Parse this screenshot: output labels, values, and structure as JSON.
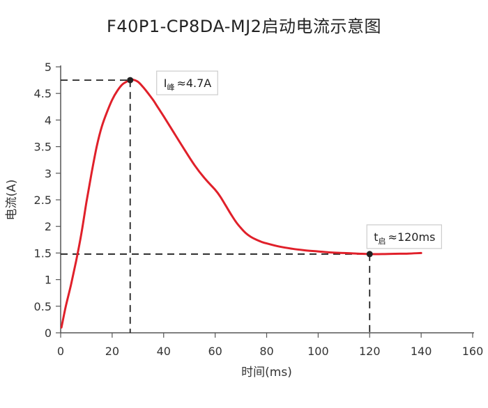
{
  "chart_data": {
    "type": "line",
    "title": "F40P1-CP8DA-MJ2启动电流示意图",
    "xlabel": "时间(ms)",
    "ylabel": "电流(A)",
    "xlim": [
      0,
      160
    ],
    "ylim": [
      0,
      5
    ],
    "xticks": [
      0,
      20,
      40,
      60,
      80,
      100,
      120,
      140,
      160
    ],
    "yticks": [
      0,
      0.5,
      1,
      1.5,
      2,
      2.5,
      3,
      3.5,
      4,
      4.5,
      5
    ],
    "ytick_labels": [
      "0",
      "0.5",
      "1",
      "1.5",
      "2",
      "2.5",
      "3",
      "3.5",
      "4",
      "4.5",
      "5"
    ],
    "grid": false,
    "series": [
      {
        "color": "#e0202a",
        "x": [
          0.3,
          2,
          4,
          6,
          8,
          10,
          12,
          14,
          16,
          18,
          20,
          22,
          24,
          26,
          27,
          28,
          30,
          32,
          34,
          36,
          38,
          40,
          44,
          48,
          52,
          56,
          60,
          62,
          64,
          66,
          68,
          70,
          72,
          74,
          76,
          78,
          80,
          85,
          90,
          95,
          100,
          105,
          110,
          115,
          120,
          125,
          130,
          135,
          140
        ],
        "y": [
          0.1,
          0.5,
          0.9,
          1.35,
          1.85,
          2.45,
          3.0,
          3.5,
          3.88,
          4.15,
          4.38,
          4.55,
          4.67,
          4.73,
          4.75,
          4.76,
          4.72,
          4.62,
          4.5,
          4.37,
          4.22,
          4.07,
          3.76,
          3.45,
          3.15,
          2.9,
          2.69,
          2.56,
          2.4,
          2.24,
          2.09,
          1.97,
          1.87,
          1.8,
          1.75,
          1.71,
          1.68,
          1.62,
          1.58,
          1.55,
          1.53,
          1.51,
          1.5,
          1.49,
          1.48,
          1.48,
          1.485,
          1.49,
          1.5
        ]
      }
    ],
    "annotations": [
      {
        "point": [
          27,
          4.75
        ],
        "label": "I",
        "subscript": "峰",
        "suffix": "≈4.7A"
      },
      {
        "point": [
          120,
          1.48
        ],
        "label": "t",
        "subscript": "启",
        "suffix": "≈120ms"
      }
    ],
    "colors": {
      "line": "#e0202a",
      "marker": "#222222",
      "guide": "#222222",
      "axis": "#555555"
    }
  }
}
